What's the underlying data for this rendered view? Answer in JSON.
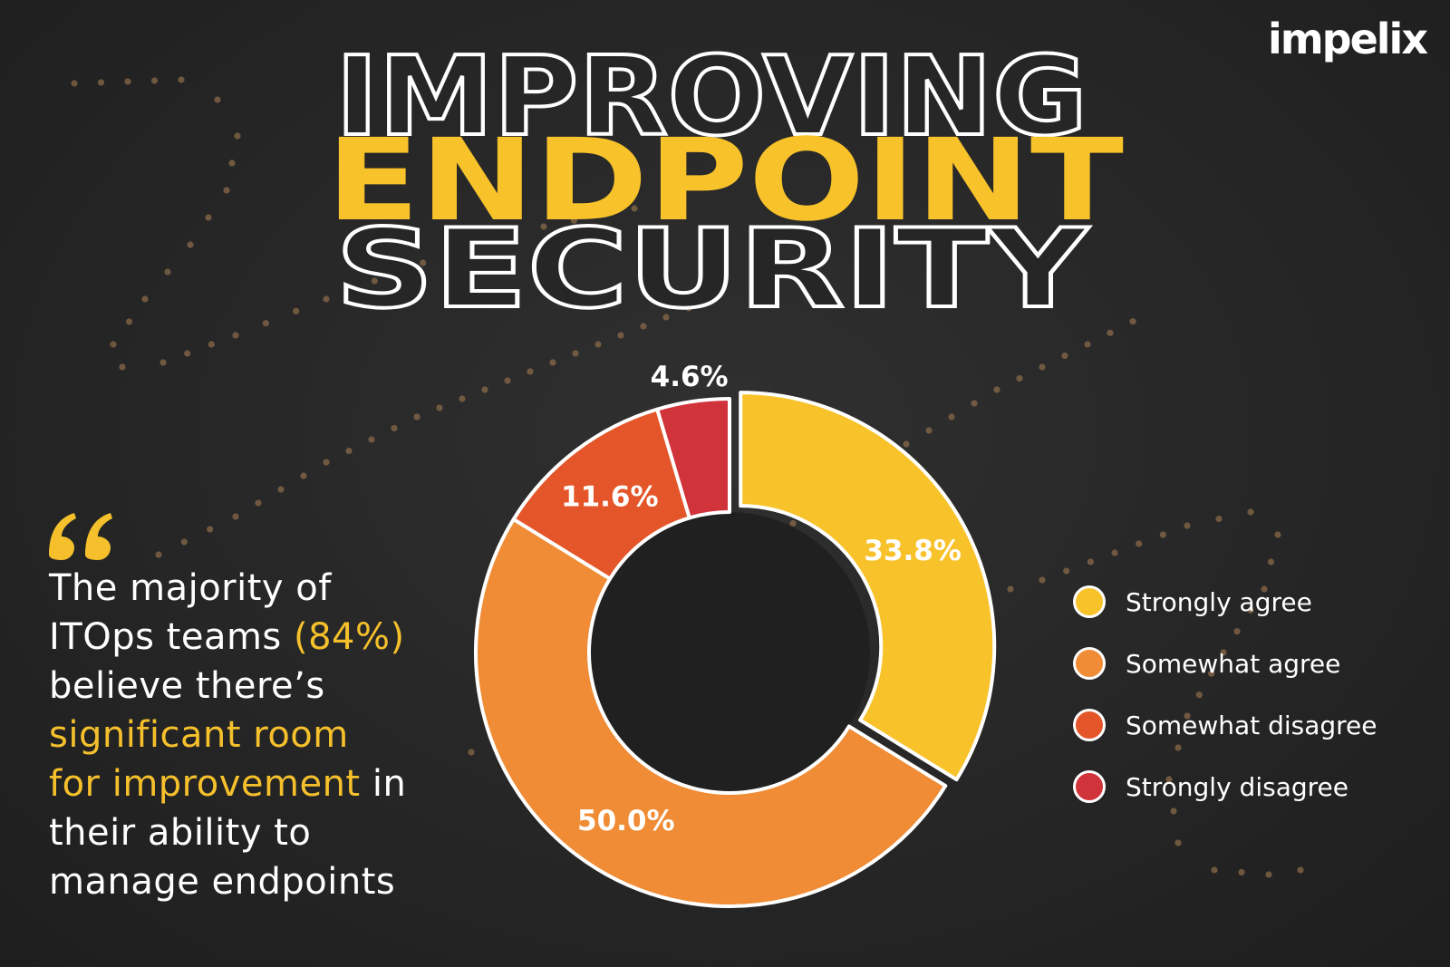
{
  "brand": {
    "logo_text": "impelix"
  },
  "title": {
    "line1": "IMPROVING",
    "line2": "ENDPOINT",
    "line3": "SECURITY"
  },
  "quote": {
    "line1_pre": "The majority of",
    "line2_pre": "ITOps teams ",
    "line2_hl": "(84%)",
    "line3_pre": "believe there’s",
    "line4_hl": "significant room",
    "line5_hl": "for improvement",
    "line5_post": " in",
    "line6_pre": "their ability to",
    "line7_pre": "manage endpoints"
  },
  "colors": {
    "strongly_agree": "#f8c22b",
    "somewhat_agree": "#ef8c35",
    "somewhat_disagree": "#e4562a",
    "strongly_disagree": "#d1333a",
    "highlight": "#f5c02c",
    "dots": "#8a6a4a"
  },
  "chart_data": {
    "type": "pie",
    "categories": [
      "Strongly agree",
      "Somewhat agree",
      "Somewhat disagree",
      "Strongly disagree"
    ],
    "values": [
      33.8,
      50.0,
      11.6,
      4.6
    ],
    "labels": [
      "33.8%",
      "50.0%",
      "11.6%",
      "4.6%"
    ],
    "donut": true,
    "exploded": "Strongly agree",
    "legend_position": "right"
  }
}
